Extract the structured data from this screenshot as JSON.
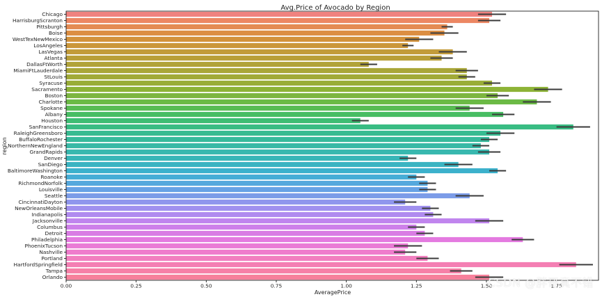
{
  "watermark": "CSDN @胖哥真不错",
  "chart_data": {
    "type": "bar",
    "orientation": "horizontal",
    "title": "Avg.Price of Avocado by Region",
    "xlabel": "AveragePrice",
    "ylabel": "region",
    "xlim": [
      0,
      1.9
    ],
    "xticks": [
      0.0,
      0.25,
      0.5,
      0.75,
      1.0,
      1.25,
      1.5,
      1.75
    ],
    "xtick_labels": [
      "0.00",
      "0.25",
      "0.50",
      "0.75",
      "1.00",
      "1.25",
      "1.50",
      "1.75"
    ],
    "grid": false,
    "legend": "none",
    "error_bars": true,
    "categories": [
      "Chicago",
      "HarrisburgScranton",
      "Pittsburgh",
      "Boise",
      "WestTexNewMexico",
      "LosAngeles",
      "LasVegas",
      "Atlanta",
      "DallasFtWorth",
      "MiamiFtLauderdale",
      "StLouis",
      "Syracuse",
      "Sacramento",
      "Boston",
      "Charlotte",
      "Spokane",
      "Albany",
      "Houston",
      "SanFrancisco",
      "RaleighGreensboro",
      "BuffaloRochester",
      "NorthernNewEngland",
      "GrandRapids",
      "Denver",
      "SanDiego",
      "BaltimoreWashington",
      "Roanoke",
      "RichmondNorfolk",
      "Louisville",
      "Seattle",
      "CincinnatiDayton",
      "NewOrleansMobile",
      "Indianapolis",
      "Jacksonville",
      "Columbus",
      "Detroit",
      "Philadelphia",
      "PhoenixTucson",
      "Nashville",
      "Portland",
      "HartfordSpringfield",
      "Tampa",
      "Orlando"
    ],
    "values": [
      1.52,
      1.51,
      1.36,
      1.35,
      1.26,
      1.22,
      1.38,
      1.34,
      1.08,
      1.43,
      1.43,
      1.52,
      1.72,
      1.54,
      1.68,
      1.44,
      1.56,
      1.05,
      1.81,
      1.55,
      1.51,
      1.48,
      1.51,
      1.22,
      1.4,
      1.54,
      1.25,
      1.29,
      1.29,
      1.44,
      1.21,
      1.3,
      1.31,
      1.51,
      1.25,
      1.28,
      1.63,
      1.22,
      1.21,
      1.29,
      1.82,
      1.41,
      1.51
    ],
    "error": [
      0.05,
      0.04,
      0.02,
      0.05,
      0.05,
      0.02,
      0.05,
      0.04,
      0.03,
      0.04,
      0.03,
      0.03,
      0.05,
      0.04,
      0.05,
      0.05,
      0.04,
      0.03,
      0.06,
      0.05,
      0.03,
      0.03,
      0.04,
      0.03,
      0.05,
      0.03,
      0.03,
      0.03,
      0.03,
      0.05,
      0.04,
      0.03,
      0.03,
      0.05,
      0.03,
      0.03,
      0.04,
      0.05,
      0.04,
      0.04,
      0.06,
      0.04,
      0.05
    ],
    "colors": [
      "#f0827f",
      "#ec8763",
      "#e48b53",
      "#dc8e42",
      "#d3923b",
      "#cb973a",
      "#c29b3a",
      "#b99f39",
      "#b1a339",
      "#a9a638",
      "#a1aa37",
      "#99ad37",
      "#8db337",
      "#7cb640",
      "#6bba45",
      "#59bc54",
      "#48bd63",
      "#3dbd73",
      "#38bc83",
      "#37bb91",
      "#37ba9c",
      "#38b9a6",
      "#38b8af",
      "#38b6b8",
      "#3ab4c2",
      "#3cb1cc",
      "#46add6",
      "#55a8dd",
      "#67a2e5",
      "#7c9ce8",
      "#8f96ed",
      "#a090ef",
      "#b08aef",
      "#c085ee",
      "#ce80ea",
      "#d97ce4",
      "#e47ae0",
      "#ea7bd6",
      "#ef7ccc",
      "#f27ebf",
      "#f47fb3",
      "#f680a7",
      "#f7809b"
    ]
  }
}
